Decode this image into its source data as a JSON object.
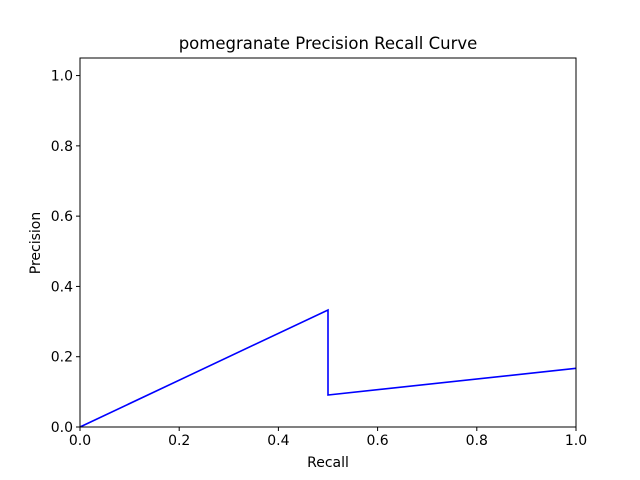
{
  "chart_data": {
    "type": "line",
    "title": "pomegranate Precision Recall Curve",
    "xlabel": "Recall",
    "ylabel": "Precision",
    "xlim": [
      0.0,
      1.0
    ],
    "ylim": [
      0.0,
      1.05
    ],
    "xticks": [
      "0.0",
      "0.2",
      "0.4",
      "0.6",
      "0.8",
      "1.0"
    ],
    "yticks": [
      "0.0",
      "0.2",
      "0.4",
      "0.6",
      "0.8",
      "1.0"
    ],
    "grid": false,
    "legend": false,
    "series": [
      {
        "color": "#0000ff",
        "x": [
          0.0,
          0.5,
          0.5,
          1.0
        ],
        "y": [
          0.0,
          0.333,
          0.091,
          0.167
        ]
      }
    ]
  }
}
